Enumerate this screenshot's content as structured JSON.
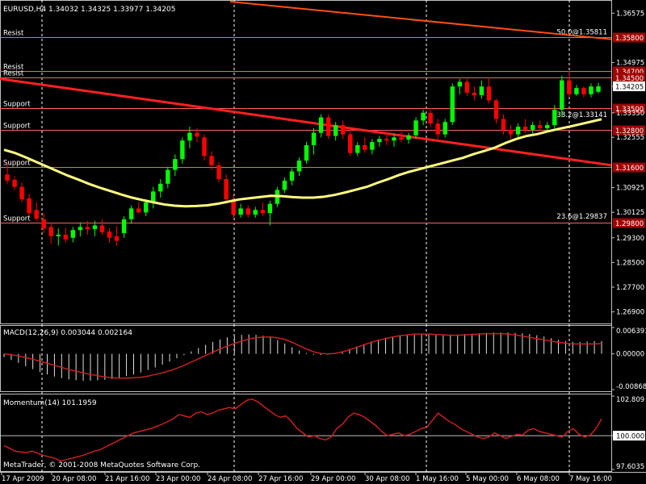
{
  "chart_data": [
    {
      "type": "candlestick",
      "symbol_title": "EURUSD,H4  1.34032 1.34325 1.33977 1.34205",
      "ylim": [
        1.2655,
        1.3695
      ],
      "price_ticks": [
        "1.36575",
        "1.34975",
        "1.34205",
        "1.33350",
        "1.32555",
        "1.30925",
        "1.30125",
        "1.29300",
        "1.28500",
        "1.27700",
        "1.26900"
      ],
      "current_price": "1.34205",
      "colors": {
        "bull": "#00ff00",
        "bear": "#ff0000",
        "ma": "#ffff80",
        "trend": "#ff2020",
        "trend_upper": "#ff5010",
        "level": "#ff6060"
      },
      "moving_average": [
        1.3215,
        1.3205,
        1.3191,
        1.3176,
        1.3161,
        1.3146,
        1.3131,
        1.3118,
        1.3104,
        1.3092,
        1.3081,
        1.307,
        1.306,
        1.3052,
        1.3045,
        1.3038,
        1.3034,
        1.3032,
        1.3033,
        1.3035,
        1.304,
        1.3047,
        1.3054,
        1.3058,
        1.3062,
        1.3066,
        1.3065,
        1.3062,
        1.306,
        1.306,
        1.3063,
        1.3069,
        1.3077,
        1.3086,
        1.3095,
        1.3108,
        1.312,
        1.3133,
        1.3144,
        1.3153,
        1.3162,
        1.3171,
        1.318,
        1.3189,
        1.3201,
        1.3211,
        1.3222,
        1.3237,
        1.325,
        1.326,
        1.3266,
        1.3275,
        1.3283,
        1.329,
        1.3298,
        1.3306,
        1.3314
      ],
      "candles": [
        {
          "o": 1.3135,
          "h": 1.3168,
          "l": 1.3105,
          "c": 1.3115
        },
        {
          "o": 1.3118,
          "h": 1.313,
          "l": 1.3085,
          "c": 1.3095
        },
        {
          "o": 1.3095,
          "h": 1.3108,
          "l": 1.3045,
          "c": 1.3055
        },
        {
          "o": 1.3058,
          "h": 1.3072,
          "l": 1.3,
          "c": 1.301
        },
        {
          "o": 1.302,
          "h": 1.3045,
          "l": 1.2985,
          "c": 1.2992
        },
        {
          "o": 1.299,
          "h": 1.301,
          "l": 1.2945,
          "c": 1.296
        },
        {
          "o": 1.2965,
          "h": 1.2975,
          "l": 1.291,
          "c": 1.2935
        },
        {
          "o": 1.2935,
          "h": 1.296,
          "l": 1.2905,
          "c": 1.294
        },
        {
          "o": 1.294,
          "h": 1.2962,
          "l": 1.2915,
          "c": 1.2925
        },
        {
          "o": 1.293,
          "h": 1.2965,
          "l": 1.2915,
          "c": 1.2955
        },
        {
          "o": 1.2955,
          "h": 1.298,
          "l": 1.2935,
          "c": 1.2965
        },
        {
          "o": 1.2965,
          "h": 1.2985,
          "l": 1.294,
          "c": 1.2958
        },
        {
          "o": 1.2958,
          "h": 1.2985,
          "l": 1.2935,
          "c": 1.297
        },
        {
          "o": 1.297,
          "h": 1.299,
          "l": 1.294,
          "c": 1.2948
        },
        {
          "o": 1.295,
          "h": 1.2962,
          "l": 1.2915,
          "c": 1.293
        },
        {
          "o": 1.2935,
          "h": 1.2968,
          "l": 1.2905,
          "c": 1.292
        },
        {
          "o": 1.2945,
          "h": 1.3,
          "l": 1.293,
          "c": 1.299
        },
        {
          "o": 1.299,
          "h": 1.3035,
          "l": 1.2975,
          "c": 1.3025
        },
        {
          "o": 1.3025,
          "h": 1.3045,
          "l": 1.301,
          "c": 1.3012
        },
        {
          "o": 1.3012,
          "h": 1.3055,
          "l": 1.3,
          "c": 1.3045
        },
        {
          "o": 1.3045,
          "h": 1.3095,
          "l": 1.3025,
          "c": 1.308
        },
        {
          "o": 1.308,
          "h": 1.312,
          "l": 1.306,
          "c": 1.3105
        },
        {
          "o": 1.3105,
          "h": 1.316,
          "l": 1.309,
          "c": 1.315
        },
        {
          "o": 1.315,
          "h": 1.32,
          "l": 1.313,
          "c": 1.3185
        },
        {
          "o": 1.3185,
          "h": 1.3255,
          "l": 1.317,
          "c": 1.3245
        },
        {
          "o": 1.3245,
          "h": 1.329,
          "l": 1.322,
          "c": 1.327
        },
        {
          "o": 1.327,
          "h": 1.3285,
          "l": 1.324,
          "c": 1.3258
        },
        {
          "o": 1.3255,
          "h": 1.3265,
          "l": 1.318,
          "c": 1.3195
        },
        {
          "o": 1.3195,
          "h": 1.321,
          "l": 1.315,
          "c": 1.3165
        },
        {
          "o": 1.3165,
          "h": 1.3175,
          "l": 1.311,
          "c": 1.312
        },
        {
          "o": 1.312,
          "h": 1.3135,
          "l": 1.304,
          "c": 1.3055
        },
        {
          "o": 1.3055,
          "h": 1.307,
          "l": 1.2995,
          "c": 1.3005
        },
        {
          "o": 1.3005,
          "h": 1.304,
          "l": 1.2995,
          "c": 1.3025
        },
        {
          "o": 1.3025,
          "h": 1.3035,
          "l": 1.2995,
          "c": 1.3005
        },
        {
          "o": 1.3005,
          "h": 1.303,
          "l": 1.2995,
          "c": 1.302
        },
        {
          "o": 1.302,
          "h": 1.3045,
          "l": 1.3,
          "c": 1.301
        },
        {
          "o": 1.301,
          "h": 1.305,
          "l": 1.297,
          "c": 1.304
        },
        {
          "o": 1.304,
          "h": 1.3095,
          "l": 1.303,
          "c": 1.3085
        },
        {
          "o": 1.3085,
          "h": 1.3125,
          "l": 1.3075,
          "c": 1.3115
        },
        {
          "o": 1.3115,
          "h": 1.3155,
          "l": 1.31,
          "c": 1.3145
        },
        {
          "o": 1.3145,
          "h": 1.319,
          "l": 1.313,
          "c": 1.318
        },
        {
          "o": 1.318,
          "h": 1.324,
          "l": 1.317,
          "c": 1.323
        },
        {
          "o": 1.323,
          "h": 1.3285,
          "l": 1.32,
          "c": 1.327
        },
        {
          "o": 1.327,
          "h": 1.333,
          "l": 1.3255,
          "c": 1.332
        },
        {
          "o": 1.332,
          "h": 1.333,
          "l": 1.325,
          "c": 1.326
        },
        {
          "o": 1.326,
          "h": 1.3305,
          "l": 1.3245,
          "c": 1.3295
        },
        {
          "o": 1.3295,
          "h": 1.331,
          "l": 1.325,
          "c": 1.3265
        },
        {
          "o": 1.3265,
          "h": 1.328,
          "l": 1.3195,
          "c": 1.3205
        },
        {
          "o": 1.3205,
          "h": 1.324,
          "l": 1.3195,
          "c": 1.323
        },
        {
          "o": 1.323,
          "h": 1.3255,
          "l": 1.3205,
          "c": 1.3215
        },
        {
          "o": 1.3215,
          "h": 1.325,
          "l": 1.32,
          "c": 1.324
        },
        {
          "o": 1.324,
          "h": 1.326,
          "l": 1.3225,
          "c": 1.325
        },
        {
          "o": 1.325,
          "h": 1.327,
          "l": 1.323,
          "c": 1.3245
        },
        {
          "o": 1.3245,
          "h": 1.3265,
          "l": 1.3225,
          "c": 1.3255
        },
        {
          "o": 1.3255,
          "h": 1.3275,
          "l": 1.324,
          "c": 1.3248
        },
        {
          "o": 1.3248,
          "h": 1.327,
          "l": 1.3235,
          "c": 1.3262
        },
        {
          "o": 1.3262,
          "h": 1.332,
          "l": 1.325,
          "c": 1.331
        },
        {
          "o": 1.331,
          "h": 1.3345,
          "l": 1.3295,
          "c": 1.3335
        },
        {
          "o": 1.3335,
          "h": 1.3345,
          "l": 1.329,
          "c": 1.33
        },
        {
          "o": 1.33,
          "h": 1.3315,
          "l": 1.325,
          "c": 1.3265
        },
        {
          "o": 1.3265,
          "h": 1.3315,
          "l": 1.3255,
          "c": 1.3305
        },
        {
          "o": 1.3305,
          "h": 1.343,
          "l": 1.3295,
          "c": 1.342
        },
        {
          "o": 1.342,
          "h": 1.3445,
          "l": 1.3395,
          "c": 1.3435
        },
        {
          "o": 1.3435,
          "h": 1.3445,
          "l": 1.339,
          "c": 1.34
        },
        {
          "o": 1.34,
          "h": 1.342,
          "l": 1.3375,
          "c": 1.3392
        },
        {
          "o": 1.3392,
          "h": 1.344,
          "l": 1.338,
          "c": 1.342
        },
        {
          "o": 1.342,
          "h": 1.345,
          "l": 1.3365,
          "c": 1.3375
        },
        {
          "o": 1.3375,
          "h": 1.338,
          "l": 1.33,
          "c": 1.3315
        },
        {
          "o": 1.3315,
          "h": 1.333,
          "l": 1.3265,
          "c": 1.328
        },
        {
          "o": 1.328,
          "h": 1.3295,
          "l": 1.325,
          "c": 1.3265
        },
        {
          "o": 1.3265,
          "h": 1.33,
          "l": 1.3255,
          "c": 1.329
        },
        {
          "o": 1.329,
          "h": 1.3315,
          "l": 1.327,
          "c": 1.328
        },
        {
          "o": 1.328,
          "h": 1.3305,
          "l": 1.3265,
          "c": 1.3295
        },
        {
          "o": 1.3295,
          "h": 1.331,
          "l": 1.3275,
          "c": 1.3285
        },
        {
          "o": 1.3285,
          "h": 1.3305,
          "l": 1.3275,
          "c": 1.3295
        },
        {
          "o": 1.3295,
          "h": 1.336,
          "l": 1.3285,
          "c": 1.3345
        },
        {
          "o": 1.3345,
          "h": 1.3455,
          "l": 1.332,
          "c": 1.344
        },
        {
          "o": 1.344,
          "h": 1.347,
          "l": 1.3385,
          "c": 1.3395
        },
        {
          "o": 1.3395,
          "h": 1.3425,
          "l": 1.339,
          "c": 1.3415
        },
        {
          "o": 1.3415,
          "h": 1.342,
          "l": 1.3385,
          "c": 1.3395
        },
        {
          "o": 1.3395,
          "h": 1.343,
          "l": 1.3385,
          "c": 1.342
        },
        {
          "o": 1.3403,
          "h": 1.34325,
          "l": 1.33977,
          "c": 1.34205
        }
      ],
      "levels": [
        {
          "label": "Resist",
          "price": 1.358,
          "box": "1.35800"
        },
        {
          "label": "Resist",
          "price": 1.347,
          "box": "1.34700"
        },
        {
          "label": "Resist",
          "price": 1.345,
          "box": "1.34500"
        },
        {
          "label": "Support",
          "price": 1.335,
          "box": "1.33500"
        },
        {
          "label": "Support",
          "price": 1.328,
          "box": "1.32800"
        },
        {
          "label": "Support",
          "price": 1.316,
          "box": "1.31600"
        },
        {
          "label": "Support",
          "price": 1.298,
          "box": "1.29800"
        }
      ],
      "fib_labels": [
        "50.0@1.35811",
        "38.2@1.33141",
        "23.6@1.29837"
      ],
      "fib_prices": [
        1.35811,
        1.33141,
        1.29837
      ],
      "date_labels": [
        "17 Apr 2009",
        "20 Apr 08:00",
        "21 Apr 16:00",
        "23 Apr 00:00",
        "24 Apr 08:00",
        "27 Apr 16:00",
        "29 Apr 00:00",
        "30 Apr 08:00",
        "1 May 16:00",
        "5 May 00:00",
        "6 May 08:00",
        "7 May 16:00"
      ]
    },
    {
      "type": "histogram+line",
      "title": "MACD(12,26,9) 0.003044 0.002164",
      "ticks": [
        "0.006391",
        "0.00000",
        "-0.00868"
      ],
      "ylim": [
        -0.00868,
        0.006391
      ],
      "histogram": [
        -0.0008,
        -0.0015,
        -0.0022,
        -0.003,
        -0.0037,
        -0.0044,
        -0.005,
        -0.0055,
        -0.0059,
        -0.0062,
        -0.0064,
        -0.0065,
        -0.0065,
        -0.0064,
        -0.0063,
        -0.0061,
        -0.0058,
        -0.0054,
        -0.005,
        -0.0045,
        -0.0039,
        -0.0033,
        -0.0026,
        -0.0019,
        -0.0011,
        -0.0003,
        0.0006,
        0.0014,
        0.0022,
        0.0029,
        0.0035,
        0.004,
        0.0044,
        0.0046,
        0.0047,
        0.0046,
        0.0044,
        0.004,
        0.0033,
        0.0025,
        0.0016,
        0.0008,
        0.0002,
        -0.0002,
        -0.0003,
        -0.0002,
        0.0001,
        0.0006,
        0.0012,
        0.0018,
        0.0024,
        0.003,
        0.0035,
        0.0039,
        0.0042,
        0.0044,
        0.0045,
        0.0046,
        0.0047,
        0.0047,
        0.0047,
        0.0047,
        0.0047,
        0.0047,
        0.0048,
        0.0049,
        0.005,
        0.0051,
        0.0052,
        0.0052,
        0.0052,
        0.0051,
        0.005,
        0.0048,
        0.0045,
        0.0042,
        0.0038,
        0.0034,
        0.0031,
        0.0029,
        0.0029,
        0.003,
        0.0031,
        0.0031
      ],
      "signal": [
        0.0,
        -0.0002,
        -0.0005,
        -0.0009,
        -0.0013,
        -0.0018,
        -0.0023,
        -0.0028,
        -0.0033,
        -0.0038,
        -0.0042,
        -0.0046,
        -0.005,
        -0.0053,
        -0.0056,
        -0.0058,
        -0.0059,
        -0.0059,
        -0.0058,
        -0.0057,
        -0.0054,
        -0.005,
        -0.0046,
        -0.0041,
        -0.0035,
        -0.0028,
        -0.002,
        -0.0012,
        -0.0004,
        0.0004,
        0.0012,
        0.0019,
        0.0025,
        0.0031,
        0.0036,
        0.0039,
        0.0041,
        0.0041,
        0.0039,
        0.0035,
        0.0028,
        0.002,
        0.0012,
        0.0005,
        0.0001,
        0.0,
        0.0001,
        0.0005,
        0.001,
        0.0016,
        0.0022,
        0.0028,
        0.0033,
        0.0037,
        0.0041,
        0.0044,
        0.0046,
        0.0048,
        0.0048,
        0.0048,
        0.0047,
        0.0046,
        0.0045,
        0.0045,
        0.0046,
        0.0047,
        0.0048,
        0.0049,
        0.0049,
        0.0049,
        0.0048,
        0.0046,
        0.0043,
        0.004,
        0.0037,
        0.0034,
        0.0031,
        0.0028,
        0.0026,
        0.0024,
        0.0024,
        0.0024,
        0.0024,
        0.0025
      ]
    },
    {
      "type": "line",
      "title": "Momentum(14) 101.1959",
      "ticks": [
        "102.809",
        "100.000",
        "97.6035"
      ],
      "ylim": [
        97.6035,
        102.809
      ],
      "values": [
        99.3,
        99.1,
        98.9,
        98.85,
        98.8,
        98.9,
        98.75,
        98.6,
        98.5,
        98.4,
        98.2,
        98.3,
        98.4,
        98.5,
        98.6,
        98.75,
        98.9,
        99.0,
        99.2,
        99.4,
        99.6,
        99.8,
        100.0,
        100.2,
        100.3,
        100.4,
        100.5,
        100.65,
        100.8,
        101.0,
        101.2,
        101.5,
        101.4,
        101.3,
        101.6,
        101.7,
        101.5,
        101.6,
        101.8,
        101.9,
        102.0,
        101.9,
        102.2,
        102.5,
        102.6,
        102.4,
        102.1,
        101.8,
        101.5,
        101.3,
        101.4,
        101.0,
        100.5,
        100.2,
        99.9,
        100.0,
        99.8,
        99.7,
        99.9,
        100.5,
        100.8,
        101.3,
        101.6,
        101.5,
        101.3,
        101.0,
        100.7,
        100.3,
        100.0,
        100.1,
        100.2,
        100.0,
        100.1,
        100.3,
        100.5,
        100.6,
        101.1,
        101.6,
        101.3,
        101.0,
        100.8,
        100.5,
        100.3,
        100.1,
        99.9,
        99.8,
        99.9,
        100.2,
        100.0,
        99.8,
        99.95,
        100.1,
        100.05,
        100.4,
        100.5,
        100.3,
        100.2,
        100.1,
        100.0,
        99.9,
        100.3,
        100.5,
        100.1,
        99.9,
        100.05,
        100.5,
        101.2
      ]
    }
  ],
  "copyright": "MetaTrader, © 2001-2008 MetaQuotes Software Corp."
}
